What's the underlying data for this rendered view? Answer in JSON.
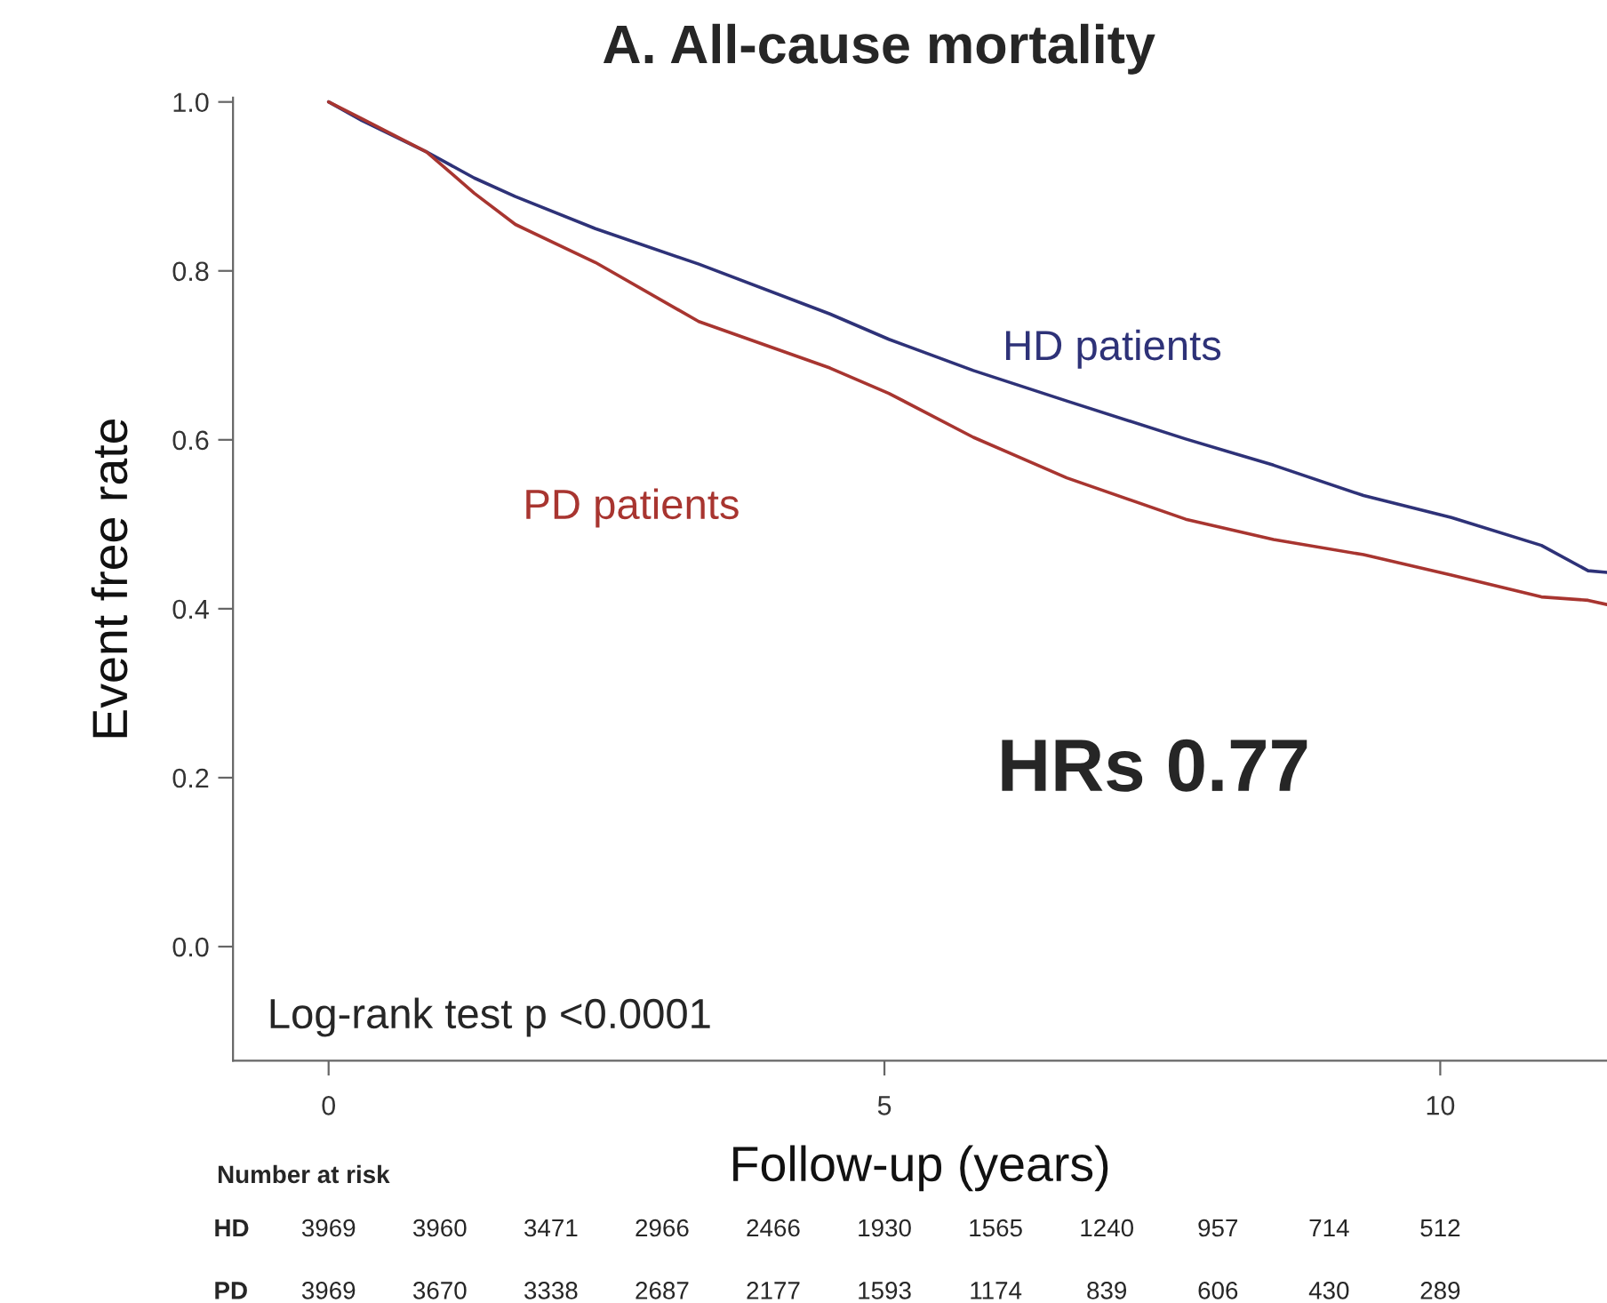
{
  "chart_data": {
    "type": "line",
    "title": "A. All-cause mortality",
    "xlabel": "Follow-up (years)",
    "ylabel": "Event free rate",
    "x": [
      0,
      0.3,
      0.88,
      1.31,
      1.68,
      2.4,
      3.33,
      4.51,
      5.04,
      5.8,
      6.64,
      7.71,
      8.5,
      9.31,
      10.1,
      10.91,
      11.33,
      11.5
    ],
    "series": [
      {
        "name": "HD patients",
        "color": "#2e3278",
        "values": [
          1.0,
          0.978,
          0.941,
          0.91,
          0.888,
          0.85,
          0.808,
          0.749,
          0.719,
          0.682,
          0.646,
          0.601,
          0.57,
          0.534,
          0.508,
          0.475,
          0.445,
          0.443
        ]
      },
      {
        "name": "PD patients",
        "color": "#a83530",
        "values": [
          1.0,
          0.98,
          0.941,
          0.892,
          0.855,
          0.81,
          0.74,
          0.685,
          0.655,
          0.603,
          0.555,
          0.506,
          0.482,
          0.464,
          0.44,
          0.414,
          0.41,
          0.405
        ]
      }
    ],
    "xlim": [
      -0.86,
      11.5
    ],
    "ylim": [
      -0.135,
      1.005
    ],
    "xticks": [
      0,
      5,
      10
    ],
    "yticks": [
      {
        "value": 0,
        "label": "0.0"
      },
      {
        "value": 0.2,
        "label": "0.2"
      },
      {
        "value": 0.4,
        "label": "0.4"
      },
      {
        "value": 0.6,
        "label": "0.6"
      },
      {
        "value": 0.8,
        "label": "0.8"
      },
      {
        "value": 1,
        "label": "1.0"
      }
    ],
    "grid": false,
    "legend": false,
    "annotations": [
      "HRs 0.77",
      "Log-rank test p <0.0001",
      "Number at risk",
      "HD",
      "PD",
      "3969",
      "3960",
      "3471",
      "2966",
      "2466",
      "1930",
      "1565",
      "1240",
      "957",
      "714",
      "512",
      "3969",
      "3670",
      "3338",
      "2687",
      "2177",
      "1593",
      "1174",
      "839",
      "606",
      "430",
      "289"
    ]
  }
}
